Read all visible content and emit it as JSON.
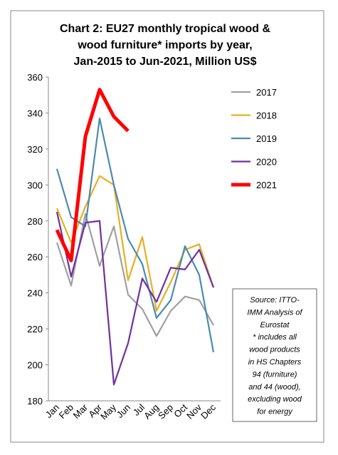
{
  "chart_data": {
    "type": "line",
    "title": [
      "Chart 2: EU27 monthly tropical wood &",
      "wood furniture* imports by year,",
      "Jan-2015 to Jun-2021, Million US$"
    ],
    "categories": [
      "Jan",
      "Feb",
      "Mar",
      "Apr",
      "May",
      "Jun",
      "Jul",
      "Aug",
      "Sep",
      "Oct",
      "Nov",
      "Dec"
    ],
    "series": [
      {
        "name": "2017",
        "color": "#a0a0a0",
        "values": [
          268,
          244,
          284,
          255,
          277,
          239,
          231,
          216,
          230,
          238,
          236,
          222
        ]
      },
      {
        "name": "2018",
        "color": "#e6b020",
        "values": [
          287,
          268,
          288,
          305,
          300,
          247,
          271,
          230,
          246,
          264,
          267,
          243
        ]
      },
      {
        "name": "2019",
        "color": "#4a8ab0",
        "values": [
          309,
          282,
          277,
          337,
          300,
          270,
          256,
          226,
          236,
          266,
          250,
          207
        ]
      },
      {
        "name": "2020",
        "color": "#7030a0",
        "values": [
          285,
          249,
          279,
          280,
          189,
          212,
          248,
          235,
          254,
          253,
          264,
          243
        ]
      },
      {
        "name": "2021",
        "color": "#ff0000",
        "values": [
          275,
          258,
          327,
          353,
          338,
          330,
          null,
          null,
          null,
          null,
          null,
          null
        ]
      }
    ],
    "ylim": [
      180,
      360
    ],
    "yticks": [
      180,
      200,
      220,
      240,
      260,
      280,
      300,
      320,
      340,
      360
    ],
    "annotation": [
      "Source: ITTO-",
      "IMM Analysis of",
      "Eurostat",
      "* includes all",
      "wood products",
      "in HS Chapters",
      "94 (furniture)",
      "and 44 (wood),",
      "excluding wood",
      "for energy"
    ]
  }
}
